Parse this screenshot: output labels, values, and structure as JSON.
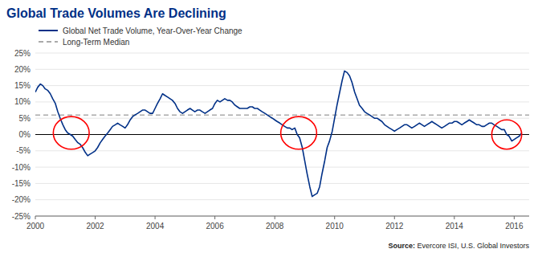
{
  "chart_data": {
    "type": "line",
    "title": "Global Trade Volumes Are Declining",
    "title_color": "#003087",
    "source_label": "Source:",
    "source": " Evercore ISI, U.S. Global Investors",
    "grid": true,
    "legend": "upper left",
    "xlim": [
      2000.0,
      2016.5
    ],
    "xticks": [
      2000,
      2002,
      2004,
      2006,
      2008,
      2010,
      2012,
      2014,
      2016
    ],
    "ylim": [
      -25,
      25
    ],
    "yticks": [
      {
        "value": -25,
        "label": "-25%"
      },
      {
        "value": -20,
        "label": "-20%"
      },
      {
        "value": -15,
        "label": "-15%"
      },
      {
        "value": -10,
        "label": "-10%"
      },
      {
        "value": -5,
        "label": "-5%"
      },
      {
        "value": 0,
        "label": "0%"
      },
      {
        "value": 5,
        "label": "5%"
      },
      {
        "value": 10,
        "label": "10%"
      },
      {
        "value": 15,
        "label": "15%"
      },
      {
        "value": 20,
        "label": "20%"
      },
      {
        "value": 25,
        "label": "25%"
      }
    ],
    "reference_lines": [
      {
        "name": "Long-Term Median",
        "value": 6.0,
        "color": "#aaaaaa",
        "line_style": "dashed"
      },
      {
        "value": 0,
        "color": "black",
        "line_style": "solid"
      }
    ],
    "highlights": [
      {
        "x": 2001.2,
        "y": 0.5,
        "rx": 0.6,
        "ry": 5.0
      },
      {
        "x": 2008.8,
        "y": 0.5,
        "rx": 0.6,
        "ry": 5.0
      },
      {
        "x": 2015.75,
        "y": 0.0,
        "rx": 0.5,
        "ry": 4.5
      }
    ],
    "highlight_color": "red",
    "x": [
      2000.0,
      2000.08,
      2000.17,
      2000.25,
      2000.33,
      2000.42,
      2000.5,
      2000.58,
      2000.67,
      2000.75,
      2000.83,
      2000.92,
      2001.0,
      2001.08,
      2001.17,
      2001.25,
      2001.33,
      2001.42,
      2001.5,
      2001.58,
      2001.67,
      2001.75,
      2001.83,
      2001.92,
      2002.0,
      2002.08,
      2002.17,
      2002.25,
      2002.33,
      2002.42,
      2002.5,
      2002.58,
      2002.67,
      2002.75,
      2002.83,
      2002.92,
      2003.0,
      2003.08,
      2003.17,
      2003.25,
      2003.33,
      2003.42,
      2003.5,
      2003.58,
      2003.67,
      2003.75,
      2003.83,
      2003.92,
      2004.0,
      2004.08,
      2004.17,
      2004.25,
      2004.33,
      2004.42,
      2004.5,
      2004.58,
      2004.67,
      2004.75,
      2004.83,
      2004.92,
      2005.0,
      2005.08,
      2005.17,
      2005.25,
      2005.33,
      2005.42,
      2005.5,
      2005.58,
      2005.67,
      2005.75,
      2005.83,
      2005.92,
      2006.0,
      2006.08,
      2006.17,
      2006.25,
      2006.33,
      2006.42,
      2006.5,
      2006.58,
      2006.67,
      2006.75,
      2006.83,
      2006.92,
      2007.0,
      2007.08,
      2007.17,
      2007.25,
      2007.33,
      2007.42,
      2007.5,
      2007.58,
      2007.67,
      2007.75,
      2007.83,
      2007.92,
      2008.0,
      2008.08,
      2008.17,
      2008.25,
      2008.33,
      2008.42,
      2008.5,
      2008.58,
      2008.67,
      2008.75,
      2008.83,
      2008.92,
      2009.0,
      2009.08,
      2009.17,
      2009.25,
      2009.33,
      2009.42,
      2009.5,
      2009.58,
      2009.67,
      2009.75,
      2009.83,
      2009.92,
      2010.0,
      2010.08,
      2010.17,
      2010.25,
      2010.33,
      2010.42,
      2010.5,
      2010.58,
      2010.67,
      2010.75,
      2010.83,
      2010.92,
      2011.0,
      2011.08,
      2011.17,
      2011.25,
      2011.33,
      2011.42,
      2011.5,
      2011.58,
      2011.67,
      2011.75,
      2011.83,
      2011.92,
      2012.0,
      2012.08,
      2012.17,
      2012.25,
      2012.33,
      2012.42,
      2012.5,
      2012.58,
      2012.67,
      2012.75,
      2012.83,
      2012.92,
      2013.0,
      2013.08,
      2013.17,
      2013.25,
      2013.33,
      2013.42,
      2013.5,
      2013.58,
      2013.67,
      2013.75,
      2013.83,
      2013.92,
      2014.0,
      2014.08,
      2014.17,
      2014.25,
      2014.33,
      2014.42,
      2014.5,
      2014.58,
      2014.67,
      2014.75,
      2014.83,
      2014.92,
      2015.0,
      2015.08,
      2015.17,
      2015.25,
      2015.33,
      2015.42,
      2015.5,
      2015.58,
      2015.67,
      2015.75,
      2015.83,
      2015.92,
      2016.0,
      2016.08,
      2016.17,
      2016.25
    ],
    "series": [
      {
        "name": "Global Net Trade Volume, Year-Over-Year Change",
        "color": "#003087",
        "values": [
          13.0,
          14.5,
          15.5,
          15.0,
          14.0,
          13.5,
          12.5,
          11.0,
          9.5,
          7.0,
          5.0,
          3.0,
          1.5,
          0.5,
          0.0,
          -0.5,
          -1.5,
          -2.5,
          -3.0,
          -4.0,
          -5.5,
          -6.5,
          -6.0,
          -5.5,
          -5.0,
          -4.0,
          -2.5,
          -1.5,
          -0.5,
          0.5,
          1.5,
          2.5,
          3.0,
          3.5,
          3.0,
          2.5,
          2.0,
          3.0,
          4.5,
          5.5,
          6.0,
          6.5,
          7.0,
          7.5,
          7.5,
          7.0,
          6.5,
          6.5,
          8.0,
          9.5,
          11.0,
          12.5,
          12.0,
          11.5,
          11.0,
          10.5,
          9.5,
          8.0,
          7.0,
          6.5,
          7.0,
          7.5,
          8.0,
          7.5,
          7.0,
          7.5,
          7.5,
          7.0,
          6.5,
          7.0,
          7.5,
          8.0,
          9.5,
          10.5,
          10.0,
          10.5,
          11.0,
          10.5,
          10.5,
          10.0,
          9.0,
          8.5,
          8.0,
          8.0,
          8.0,
          8.0,
          8.5,
          8.5,
          8.0,
          8.0,
          7.5,
          7.0,
          6.5,
          6.0,
          5.5,
          5.0,
          4.5,
          4.0,
          3.5,
          3.0,
          2.5,
          2.0,
          2.0,
          1.5,
          2.0,
          0.0,
          -1.0,
          -4.0,
          -8.0,
          -12.0,
          -16.0,
          -19.0,
          -18.5,
          -18.0,
          -16.0,
          -12.0,
          -8.0,
          -4.0,
          -2.0,
          1.0,
          5.0,
          9.0,
          13.0,
          16.5,
          19.5,
          19.0,
          18.0,
          16.0,
          13.0,
          11.0,
          9.0,
          8.0,
          7.0,
          6.5,
          6.0,
          5.5,
          5.0,
          5.0,
          4.5,
          4.0,
          3.0,
          2.5,
          2.0,
          1.5,
          1.0,
          1.5,
          2.0,
          2.5,
          3.0,
          3.0,
          2.5,
          2.0,
          2.5,
          3.0,
          3.5,
          3.0,
          2.5,
          3.0,
          3.5,
          4.0,
          3.5,
          3.0,
          2.5,
          2.0,
          2.5,
          3.0,
          3.5,
          3.5,
          4.0,
          4.0,
          3.5,
          3.0,
          3.5,
          4.0,
          4.5,
          4.0,
          3.5,
          3.0,
          3.0,
          2.5,
          2.5,
          3.0,
          3.5,
          3.5,
          3.0,
          2.5,
          2.0,
          1.5,
          1.5,
          0.0,
          -0.5,
          -2.0,
          -1.5,
          -1.0,
          -0.5,
          0.5
        ]
      }
    ]
  }
}
